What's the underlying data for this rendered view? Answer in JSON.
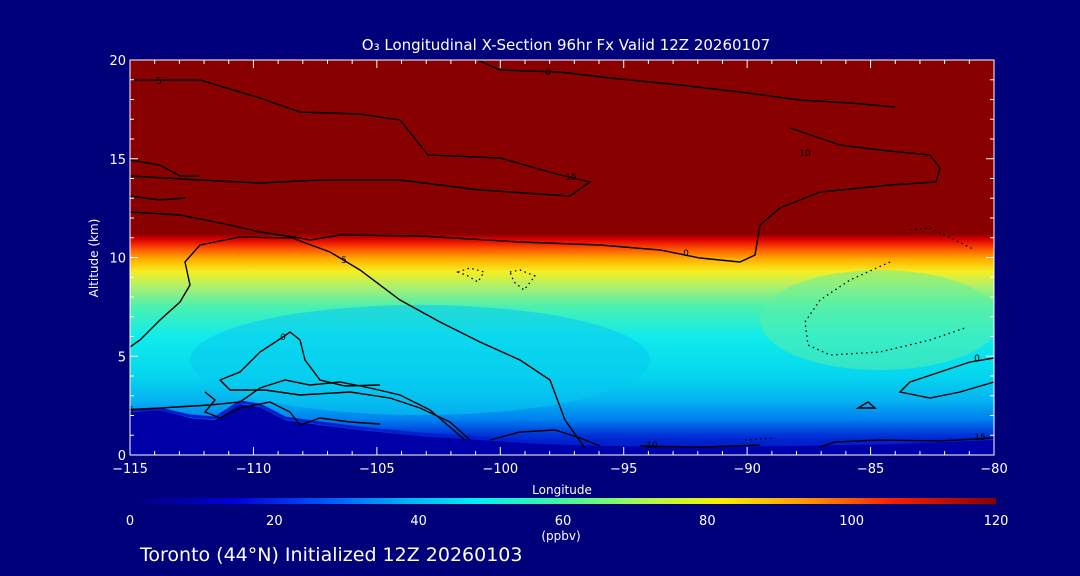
{
  "chart_data": {
    "type": "heatmap",
    "title": "O₃ Longitudinal X-Section 96hr  Fx Valid 12Z 20260107",
    "xlabel": "Longitude",
    "ylabel": "Altitude (km)",
    "xlim": [
      -115,
      -80
    ],
    "ylim": [
      0,
      20
    ],
    "x_ticks": [
      -115,
      -110,
      -105,
      -100,
      -95,
      -90,
      -85,
      -80
    ],
    "x_tick_labels": [
      "−115",
      "−110",
      "−105",
      "−100",
      "−95",
      "−90",
      "−85",
      "−80"
    ],
    "y_ticks": [
      0,
      5,
      10,
      15,
      20
    ],
    "y_tick_labels": [
      "0",
      "5",
      "10",
      "15",
      "20"
    ],
    "colorbar": {
      "min": 0,
      "max": 120,
      "ticks": [
        0,
        20,
        40,
        60,
        80,
        100,
        120
      ],
      "tick_labels": [
        "0",
        "20",
        "40",
        "60",
        "80",
        "100",
        "120"
      ],
      "unit_label": "(ppbv)",
      "colormap": "rainbow (dark blue → cyan → yellow → red → dark red)"
    },
    "ozone_ppbv_estimate": {
      "surface_layer_0_to_1km": 20,
      "boundary_layer_1_to_5km": 38,
      "mid_troposphere_5_to_9km": 48,
      "tropopause_transition_9_to_11km": 85,
      "stratosphere_above_11km": 120
    },
    "contour_labels": [
      "0",
      "5",
      "10",
      "15",
      "0",
      "5",
      "0",
      "0",
      "5",
      "10",
      "15",
      "0"
    ],
    "grid": false
  },
  "footer": "Toronto (44°N) Initialized 12Z 20260103",
  "colors": {
    "background": "#00007a",
    "stratosphere": "#880000",
    "foreground": "#ffffff"
  }
}
